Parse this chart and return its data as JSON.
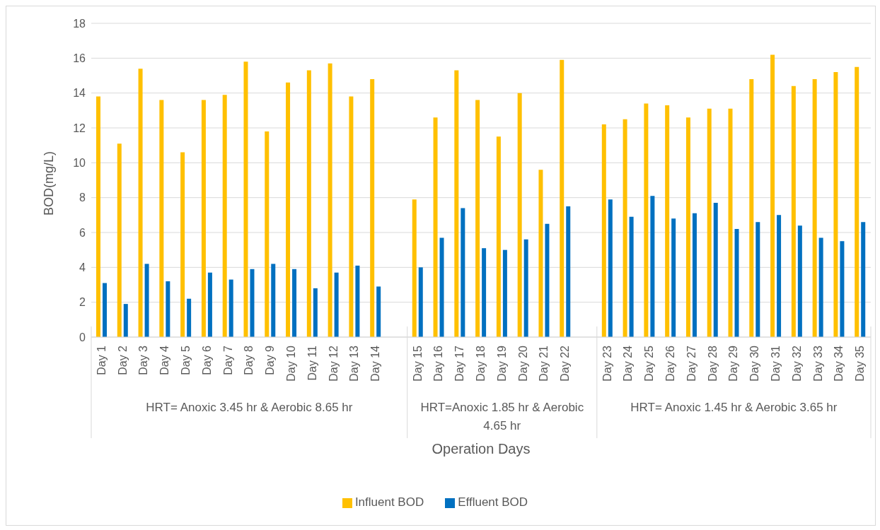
{
  "chart_data": {
    "type": "bar",
    "xlabel": "Operation Days",
    "ylabel": "BOD(mg/L)",
    "categories": [
      "Day 1",
      "Day 2",
      "Day 3",
      "Day 4",
      "Day 5",
      "Day 6",
      "Day 7",
      "Day 8",
      "Day 9",
      "Day 10",
      "Day 11",
      "Day 12",
      "Day 13",
      "Day 14",
      null,
      "Day 15",
      "Day 16",
      "Day 17",
      "Day 18",
      "Day 19",
      "Day 20",
      "Day 21",
      "Day 22",
      null,
      "Day 23",
      "Day 24",
      "Day 25",
      "Day 26",
      "Day 27",
      "Day 28",
      "Day 29",
      "Day 30",
      "Day 31",
      "Day 32",
      "Day 33",
      "Day 34",
      "Day 35"
    ],
    "series": [
      {
        "name": "Influent BOD",
        "color": "#ffc000",
        "values": [
          13.8,
          11.1,
          15.4,
          13.6,
          10.6,
          13.6,
          13.9,
          15.8,
          11.8,
          14.6,
          15.3,
          15.7,
          13.8,
          14.8,
          null,
          7.9,
          12.6,
          15.3,
          13.6,
          11.5,
          14.0,
          9.6,
          15.9,
          null,
          12.2,
          12.5,
          13.4,
          13.3,
          12.6,
          13.1,
          13.1,
          14.8,
          16.2,
          14.4,
          14.8,
          15.2,
          15.5
        ]
      },
      {
        "name": "Effluent BOD",
        "color": "#0070c0",
        "values": [
          3.1,
          1.9,
          4.2,
          3.2,
          2.2,
          3.7,
          3.3,
          3.9,
          4.2,
          3.9,
          2.8,
          3.7,
          4.1,
          2.9,
          null,
          4.0,
          5.7,
          7.4,
          5.1,
          5.0,
          5.6,
          6.5,
          7.5,
          null,
          7.9,
          6.9,
          8.1,
          6.8,
          7.1,
          7.7,
          6.2,
          6.6,
          7.0,
          6.4,
          5.7,
          5.5,
          6.6
        ]
      }
    ],
    "annotations": [
      "HRT= Anoxic 3.45 hr & Aerobic 8.65 hr",
      "HRT=Anoxic 1.85 hr & Aerobic 4.65 hr",
      "HRT= Anoxic 1.45 hr & Aerobic 3.65 hr"
    ],
    "ylim": [
      0,
      18
    ],
    "yticks": [
      0,
      2,
      4,
      6,
      8,
      10,
      12,
      14,
      16,
      18
    ],
    "grid": "y",
    "legend": "bottom"
  }
}
